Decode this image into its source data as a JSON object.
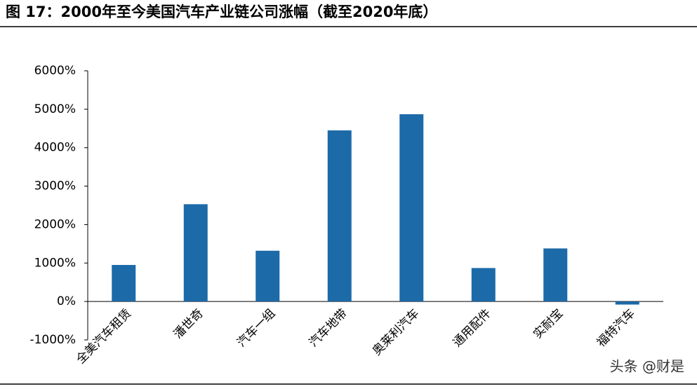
{
  "chart_data": {
    "type": "bar",
    "title": "图 17：2000年至今美国汽车产业链公司涨幅（截至2020年底）",
    "categories": [
      "全美汽车租赁",
      "潘世奇",
      "汽车一组",
      "汽车地带",
      "奥莱利汽车",
      "通用配件",
      "实耐宝",
      "福特汽车"
    ],
    "values": [
      950,
      2530,
      1320,
      4450,
      4870,
      870,
      1380,
      -80
    ],
    "color": "#1c6aa8",
    "ylim": [
      -1000,
      6000
    ],
    "yticks": [
      {
        "value": -1000,
        "label": "-1000%"
      },
      {
        "value": 0,
        "label": "0%"
      },
      {
        "value": 1000,
        "label": "1000%"
      },
      {
        "value": 2000,
        "label": "2000%"
      },
      {
        "value": 3000,
        "label": "3000%"
      },
      {
        "value": 4000,
        "label": "4000%"
      },
      {
        "value": 5000,
        "label": "5000%"
      },
      {
        "value": 6000,
        "label": "6000%"
      }
    ],
    "grid": false,
    "watermark": "头条 @财是"
  }
}
